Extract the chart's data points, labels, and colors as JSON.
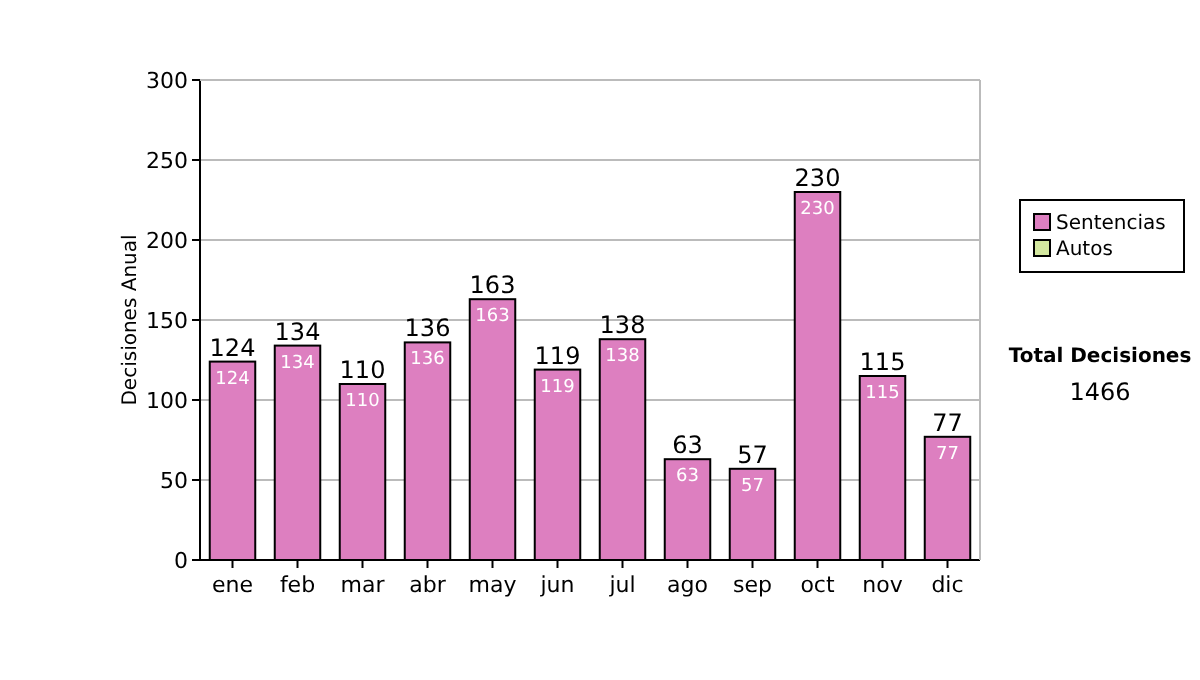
{
  "chart_data": {
    "type": "bar",
    "stacked": true,
    "ylabel": "Decisiones Anual",
    "categories": [
      "ene",
      "feb",
      "mar",
      "abr",
      "may",
      "jun",
      "jul",
      "ago",
      "sep",
      "oct",
      "nov",
      "dic"
    ],
    "series": [
      {
        "name": "Sentencias",
        "color": "#dd7fc0",
        "values": [
          124,
          134,
          110,
          136,
          163,
          119,
          138,
          63,
          57,
          230,
          115,
          77
        ],
        "value_labels": [
          "124",
          "134",
          "110",
          "136",
          "163",
          "119",
          "138",
          "63",
          "57",
          "230",
          "115",
          "77"
        ]
      },
      {
        "name": "Autos",
        "color": "#d4e8a0",
        "values": [
          0,
          0,
          0,
          0,
          0,
          0,
          0,
          0,
          0,
          0,
          0,
          0
        ]
      }
    ],
    "totals": [
      "124",
      "134",
      "110",
      "136",
      "163",
      "119",
      "138",
      "63",
      "57",
      "230",
      "115",
      "77"
    ],
    "ylim": [
      0,
      300
    ],
    "yticks": [
      0,
      50,
      100,
      150,
      200,
      250,
      300
    ],
    "grid": "y",
    "legend": "right",
    "annotations": [
      "Total Decisiones",
      "1466"
    ]
  }
}
